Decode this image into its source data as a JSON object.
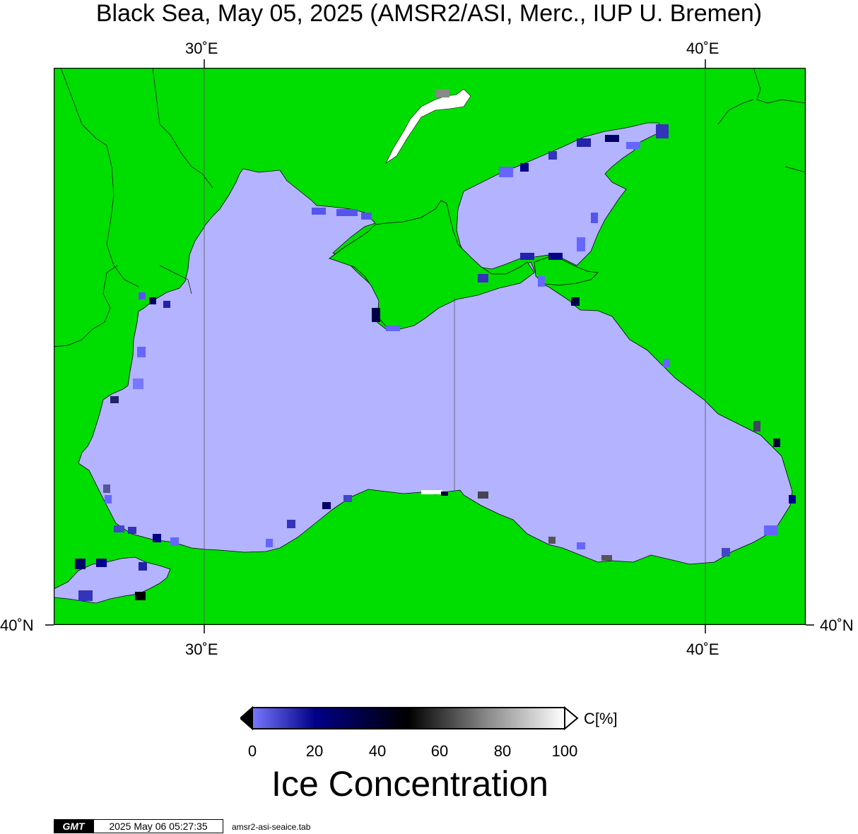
{
  "title": "Black Sea, May 05, 2025 (AMSR2/ASI, Merc., IUP U. Bremen)",
  "axes": {
    "top_ticks": [
      "30˚E",
      "40˚E"
    ],
    "bottom_ticks": [
      "30˚E",
      "40˚E"
    ],
    "left_ticks": [
      "40˚N"
    ],
    "right_ticks": [
      "40˚N"
    ]
  },
  "colors": {
    "land": "#00dd00",
    "sea": "#b3b3ff",
    "coast": "#000000"
  },
  "colorbar": {
    "ticks": [
      "0",
      "20",
      "40",
      "60",
      "80",
      "100"
    ],
    "unit": "C[%]",
    "title": "Ice Concentration",
    "stops": [
      "#7777ff",
      "#000088",
      "#000000",
      "#888888",
      "#ffffff"
    ]
  },
  "footer": {
    "logo": "GMT",
    "timestamp": "2025 May 06 05:27:35",
    "file": "amsr2-asi-seaice.tab"
  }
}
